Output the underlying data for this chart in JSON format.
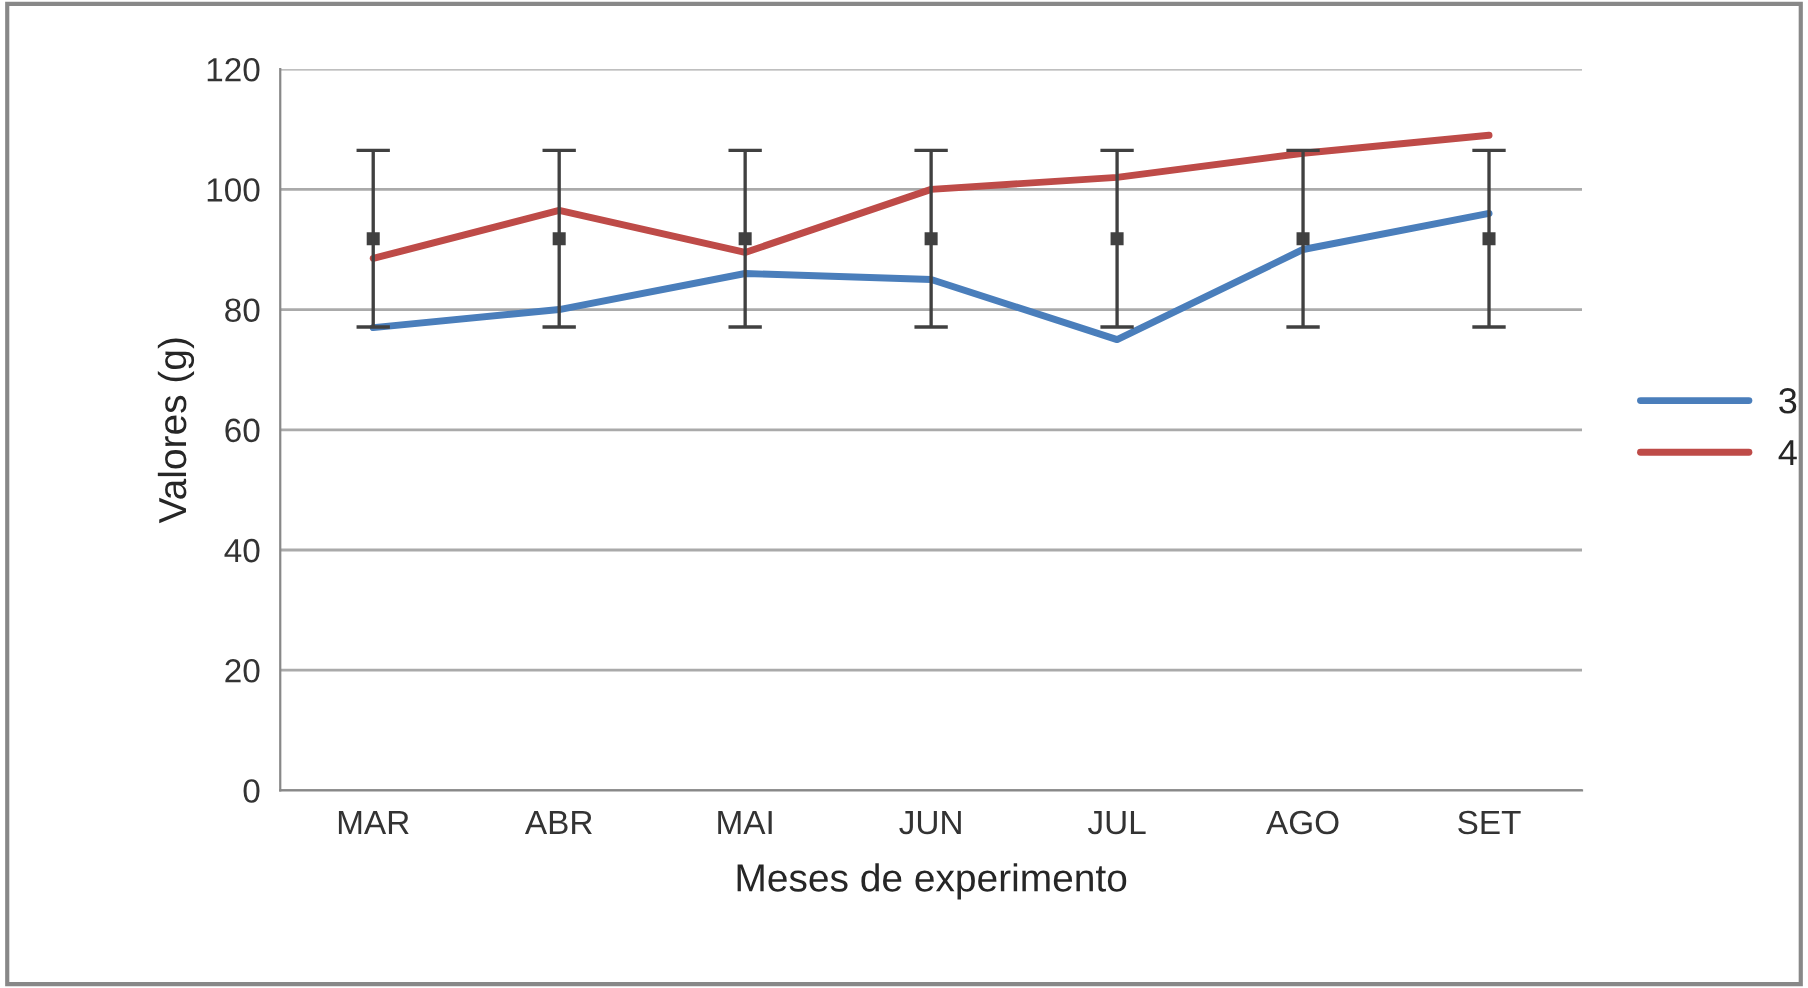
{
  "chart_data": {
    "type": "line",
    "xlabel": "Meses de experimento",
    "ylabel": "Valores (g)",
    "categories": [
      "MAR",
      "ABR",
      "MAI",
      "JUN",
      "JUL",
      "AGO",
      "SET"
    ],
    "series": [
      {
        "name": "3",
        "color": "#4a7ebb",
        "values": [
          77,
          80,
          86,
          85,
          75,
          90,
          96
        ]
      },
      {
        "name": "4",
        "color": "#be4b48",
        "values": [
          88.5,
          96.5,
          89.5,
          100,
          102,
          106,
          109
        ]
      },
      {
        "type": "scatter",
        "color": "#404040",
        "marker": "square",
        "values": [
          91.8,
          91.8,
          91.8,
          91.8,
          91.8,
          91.8,
          91.8
        ],
        "errors": [
          14.7,
          14.7,
          14.7,
          14.7,
          14.7,
          14.7,
          14.7
        ]
      }
    ],
    "ylim": [
      0,
      120
    ],
    "yticks": [
      0,
      20,
      40,
      60,
      80,
      100,
      120
    ],
    "grid": "y",
    "legend": "right",
    "marker": "none",
    "line_style": "solid"
  }
}
